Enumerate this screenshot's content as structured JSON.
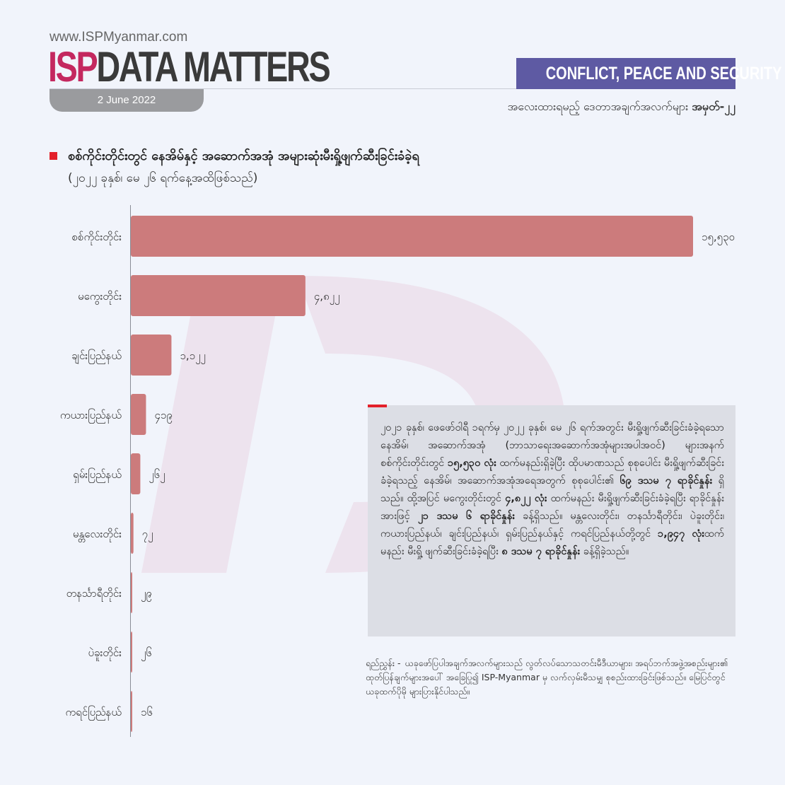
{
  "header": {
    "website": "www.ISPMyanmar.com",
    "logo_isp": "ISP",
    "logo_rest": "DATA MATTERS",
    "date": "2 June 2022",
    "category": "CONFLICT, PEACE AND SECURITY",
    "series_label": "အလေးထားရမည့် ဒေတာအချက်အလက်များ",
    "series_number": "အမှတ်-၂၂"
  },
  "colors": {
    "bar": "#cc7b7c",
    "accent": "#e3202a",
    "category_bg": "#5e5aa3",
    "isp": "#c4285f"
  },
  "chart_data": {
    "type": "bar",
    "orientation": "horizontal",
    "title": "စစ်ကိုင်းတိုင်းတွင် နေအိမ်နှင့် အဆောက်အအုံ အများဆုံးမီးရှို့ဖျက်ဆီးခြင်းခံခဲ့ရ",
    "subtitle": "(၂၀၂၂ ခုနှစ်၊ မေ ၂၆ ရက်နေ့အထိဖြစ်သည်)",
    "categories": [
      "စစ်ကိုင်းတိုင်း",
      "မကွေးတိုင်း",
      "ချင်းပြည်နယ်",
      "ကယားပြည်နယ်",
      "ရှမ်းပြည်နယ်",
      "မန္တလေးတိုင်း",
      "တနင်္သာရီတိုင်း",
      "ပဲခူးတိုင်း",
      "ကရင်ပြည်နယ်"
    ],
    "values": [
      15530,
      4822,
      1122,
      419,
      262,
      72,
      29,
      26,
      16
    ],
    "value_labels": [
      "၁၅,၅၃၀",
      "၄,၈၂၂",
      "၁,၁၂၂",
      "၄၁၉",
      "၂၆၂",
      "၇၂",
      "၂၉",
      "၂၆",
      "၁၆"
    ],
    "xlim": [
      0,
      15530
    ],
    "grid": false,
    "legend": "none"
  },
  "summary": {
    "parts": [
      "၂၀၂၁ ခုနှစ်၊ ဖေဖော်ဝါရီ ၁ရက်မှ ၂၀၂၂ ခုနှစ်၊ မေ ၂၆ ရက်အတွင်း မီးရှို့ဖျက်ဆီးခြင်းခံခဲ့ရသော နေအိမ်၊ အဆောက်အအုံ (ဘာသာရေးအဆောက်အအုံများအပါအဝင်) များအနက် စစ်ကိုင်းတိုင်းတွင် ",
      "၁၅,၅၃၀ လုံး",
      " ထက်မနည်းရှိခဲ့ပြီး ထိုပမာဏသည် စုစုပေါင်း မီးရှို့ဖျက်ဆီးခြင်းခံခဲ့ရသည့် နေအိမ်၊ အဆောက်အအုံအရေအတွက် စုစုပေါင်း၏ ",
      "၆၉ ဒသမ ၇ ရာခိုင်နှုန်း",
      " ရှိသည်။ ထို့အပြင် မကွေးတိုင်းတွင် ",
      "၄,၈၂၂ လုံး",
      " ထက်မနည်း မီးရှို့ဖျက်ဆီးခြင်းခံခဲ့ရပြီး ရာခိုင်နှုန်းအားဖြင့် ",
      "၂၁ ဒသမ ၆ ရာခိုင်နှုန်း",
      " ခန့်ရှိသည်။ မန္တလေးတိုင်း၊ တနင်္သာရီတိုင်း၊ ပဲခူးတိုင်း၊ ကယားပြည်နယ်၊ ချင်းပြည်နယ်၊ ရှမ်းပြည်နယ်နှင့် ကရင်ပြည်နယ်တို့တွင် ",
      "၁,၉၄၇ လုံး",
      "ထက်မနည်း မီးရှို့ ဖျက်ဆီးခြင်းခံခဲ့ရပြီး ",
      "၈ ဒသမ ၇ ရာခိုင်နှုန်း",
      " ခန့်ရှိခဲ့သည်။"
    ]
  },
  "note": {
    "label": "ရည်ညွှန်း -",
    "text": "ယခုဖော်ပြပါအချက်အလက်များသည် လွတ်လပ်သောသတင်းမီဒီယာများ၊ အရပ်ဘက်အဖွဲ့အစည်းများ၏ ထုတ်ပြန်ချက်များအပေါ် အခြေပြု၍ ISP-Myanmar မှ လက်လှမ်းမီသမျှ စုစည်းထားခြင်းဖြစ်သည်။ မြေပြင်တွင် ယခုထက်ပိုမို များပြားနိုင်ပါသည်။"
  }
}
